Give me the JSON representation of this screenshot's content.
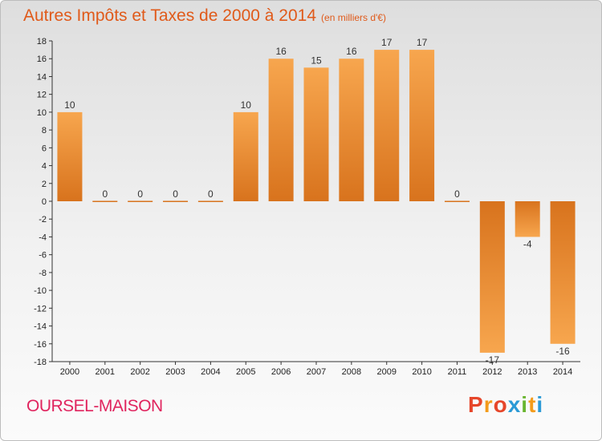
{
  "header": {
    "title": "Autres Impôts et Taxes de 2000 à 2014",
    "subtitle": "(en milliers d'€)"
  },
  "footer": {
    "commune": "OURSEL-MAISON",
    "brand": "Proxiti",
    "brand_colors": [
      "#e6462a",
      "#f39b1a",
      "#2b9ad6",
      "#69b52f"
    ]
  },
  "chart_data": {
    "type": "bar",
    "categories": [
      "2000",
      "2001",
      "2002",
      "2003",
      "2004",
      "2005",
      "2006",
      "2007",
      "2008",
      "2009",
      "2010",
      "2011",
      "2012",
      "2013",
      "2014"
    ],
    "values": [
      10,
      0,
      0,
      0,
      0,
      10,
      16,
      15,
      16,
      17,
      17,
      0,
      -17,
      -4,
      -16
    ],
    "ylim": [
      -18,
      18
    ],
    "yticks": [
      18,
      16,
      14,
      12,
      10,
      8,
      6,
      4,
      2,
      0,
      -2,
      -4,
      -6,
      -8,
      -10,
      -12,
      -14,
      -16,
      -18
    ],
    "grid": false,
    "colors": {
      "bar_light": "#f7a64e",
      "bar_dark": "#d8731d",
      "axis": "#333333"
    }
  }
}
